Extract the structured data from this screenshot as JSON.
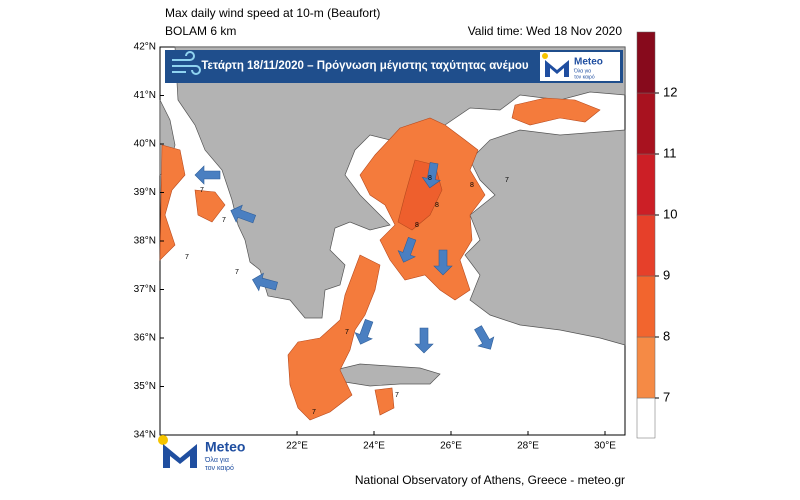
{
  "header": {
    "title": "Max daily wind speed at 10-m (Beaufort)",
    "model": "BOLAM 6 km",
    "valid_time": "Valid time: Wed 18 Nov 2020"
  },
  "banner": {
    "text": "Τετάρτη 18/11/2020 – Πρόγνωση μέγιστης ταχύτητας ανέμου"
  },
  "logo": {
    "name": "Meteo",
    "tagline": [
      "Όλα για",
      "τον καιρό"
    ]
  },
  "map": {
    "lat_ticks": [
      {
        "value": 42,
        "label": "42°N"
      },
      {
        "value": 41,
        "label": "41°N"
      },
      {
        "value": 40,
        "label": "40°N"
      },
      {
        "value": 39,
        "label": "39°N"
      },
      {
        "value": 38,
        "label": "38°N"
      },
      {
        "value": 37,
        "label": "37°N"
      },
      {
        "value": 36,
        "label": "36°N"
      },
      {
        "value": 35,
        "label": "35°N"
      },
      {
        "value": 34,
        "label": "34°N"
      }
    ],
    "lon_ticks": [
      {
        "value": 22,
        "label": "22°E"
      },
      {
        "value": 24,
        "label": "24°E"
      },
      {
        "value": 26,
        "label": "26°E"
      },
      {
        "value": 28,
        "label": "28°E"
      },
      {
        "value": 30,
        "label": "30°E"
      }
    ],
    "contour_labels": [
      "7",
      "7",
      "7",
      "7",
      "8",
      "8",
      "8",
      "8",
      "7",
      "7",
      "7",
      "7"
    ]
  },
  "colorbar": {
    "levels": [
      7,
      8,
      9,
      10,
      11,
      12
    ],
    "colors": [
      "#ffffff",
      "#f58a45",
      "#f2652e",
      "#e6402a",
      "#cc1f26",
      "#a8121f",
      "#870a1c"
    ]
  },
  "footer": {
    "credit": "National Observatory of Athens, Greece - meteo.gr"
  }
}
